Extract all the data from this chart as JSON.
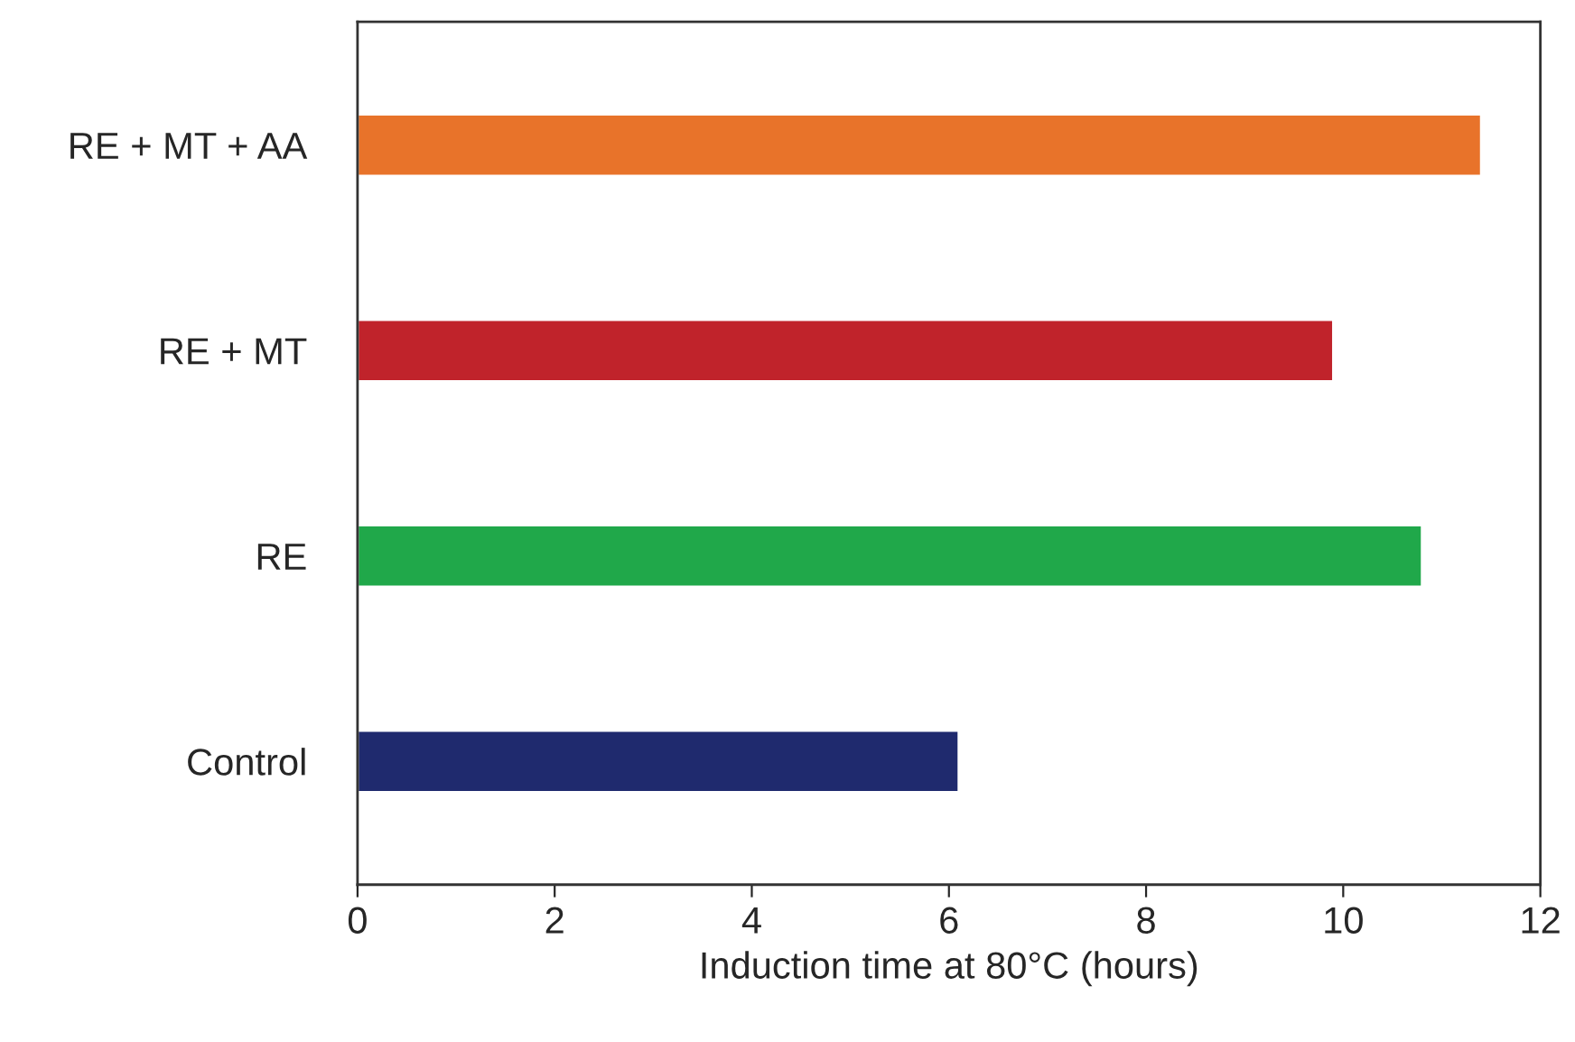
{
  "chart_data": {
    "type": "bar",
    "orientation": "horizontal",
    "xlabel": "Induction time at 80°C (hours)",
    "categories": [
      "RE + MT + AA",
      "RE + MT",
      "RE",
      "Control"
    ],
    "values": [
      11.4,
      9.9,
      10.8,
      6.1
    ],
    "colors": [
      "#e8732a",
      "#c0232b",
      "#20a84a",
      "#1f2a6e"
    ],
    "xlim": [
      0,
      12
    ],
    "xticks": [
      0,
      2,
      4,
      6,
      8,
      10,
      12
    ],
    "grid": false,
    "legend": false
  }
}
